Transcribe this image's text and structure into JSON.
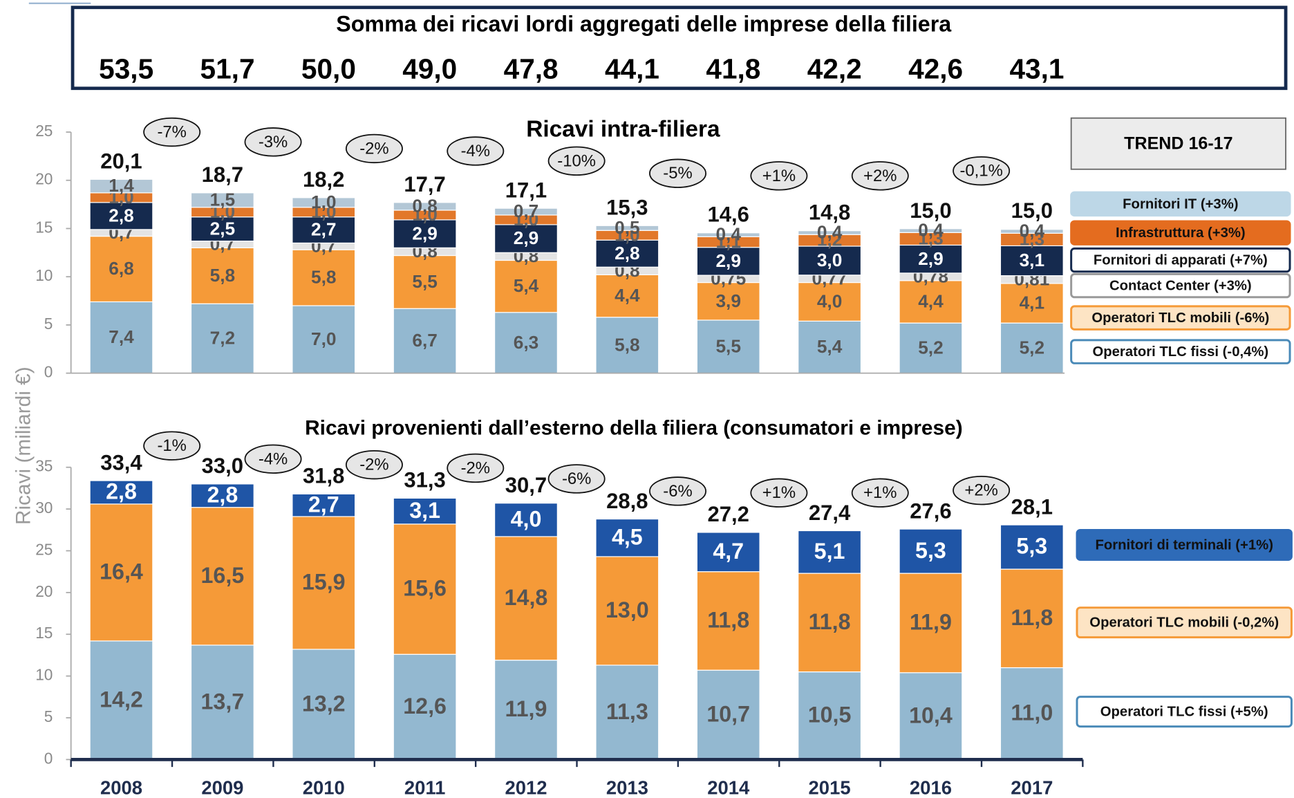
{
  "summary": {
    "title": "Somma dei ricavi lordi aggregati delle imprese della filiera",
    "values": [
      "53,5",
      "51,7",
      "50,0",
      "49,0",
      "47,8",
      "44,1",
      "41,8",
      "42,2",
      "42,6",
      "43,1"
    ]
  },
  "y_label": "Ricavi (miliardi €)",
  "chart_data": [
    {
      "type": "bar",
      "stacked": true,
      "title": "Ricavi intra-filiera",
      "legend_title": "TREND 16-17",
      "ylim": [
        0,
        25
      ],
      "yticks": [
        0,
        5,
        10,
        15,
        20,
        25
      ],
      "series": [
        {
          "name": "Operatori TLC fissi (-0,4%)",
          "color": "#93b8d0",
          "values": [
            7.4,
            7.2,
            7.0,
            6.7,
            6.3,
            5.8,
            5.5,
            5.4,
            5.2,
            5.2
          ],
          "value_labels": [
            "7,4",
            "7,2",
            "7,0",
            "6,7",
            "6,3",
            "5,8",
            "5,5",
            "5,4",
            "5,2",
            "5,2"
          ]
        },
        {
          "name": "Operatori TLC mobili (-6%)",
          "color": "#f59a38",
          "values": [
            6.8,
            5.8,
            5.8,
            5.5,
            5.4,
            4.4,
            3.9,
            4.0,
            4.4,
            4.1
          ],
          "value_labels": [
            "6,8",
            "5,8",
            "5,8",
            "5,5",
            "5,4",
            "4,4",
            "3,9",
            "4,0",
            "4,4",
            "4,1"
          ]
        },
        {
          "name": "Contact Center (+3%)",
          "color": "#e4e4e4",
          "values": [
            0.7,
            0.7,
            0.7,
            0.8,
            0.8,
            0.8,
            0.75,
            0.77,
            0.78,
            0.81
          ],
          "value_labels": [
            "0,7",
            "0,7",
            "0,7",
            "0,8",
            "0,8",
            "0,8",
            "0,75",
            "0,77",
            "0,78",
            "0,81"
          ]
        },
        {
          "name": "Fornitori di apparati (+7%)",
          "color": "#152a4e",
          "values": [
            2.8,
            2.5,
            2.7,
            2.9,
            2.9,
            2.8,
            2.9,
            3.0,
            2.9,
            3.1
          ],
          "value_labels": [
            "2,8",
            "2,5",
            "2,7",
            "2,9",
            "2,9",
            "2,8",
            "2,9",
            "3,0",
            "2,9",
            "3,1"
          ]
        },
        {
          "name": "Infrastruttura (+3%)",
          "color": "#e2782a",
          "values": [
            1.0,
            1.0,
            1.0,
            1.0,
            1.0,
            1.0,
            1.1,
            1.2,
            1.3,
            1.3
          ],
          "value_labels": [
            "1,0",
            "1,0",
            "1,0",
            "1,0",
            "1,0",
            "1,0",
            "1,1",
            "1,2",
            "1,3",
            "1,3"
          ]
        },
        {
          "name": "Fornitori IT (+3%)",
          "color": "#b3c7d6",
          "values": [
            1.4,
            1.5,
            1.0,
            0.8,
            0.7,
            0.5,
            0.4,
            0.4,
            0.4,
            0.4
          ],
          "value_labels": [
            "1,4",
            "1,5",
            "1,0",
            "0,8",
            "0,7",
            "0,5",
            "0,4",
            "0,4",
            "0,4",
            "0,4"
          ]
        }
      ],
      "totals": [
        20.1,
        18.7,
        18.2,
        17.7,
        17.1,
        15.3,
        14.6,
        14.8,
        15.0,
        15.0
      ],
      "total_labels": [
        "20,1",
        "18,7",
        "18,2",
        "17,7",
        "17,1",
        "15,3",
        "14,6",
        "14,8",
        "15,0",
        "15,0"
      ],
      "annotations": [
        "-7%",
        "-3%",
        "-2%",
        "-4%",
        "-10%",
        "-5%",
        "+1%",
        "+2%",
        "-0,1%"
      ]
    },
    {
      "type": "bar",
      "stacked": true,
      "title": "Ricavi provenienti dall’esterno della filiera (consumatori e imprese)",
      "categories": [
        "2008",
        "2009",
        "2010",
        "2011",
        "2012",
        "2013",
        "2014",
        "2015",
        "2016",
        "2017"
      ],
      "ylim": [
        0,
        35
      ],
      "yticks": [
        0,
        5,
        10,
        15,
        20,
        25,
        30,
        35
      ],
      "series": [
        {
          "name": "Operatori TLC fissi (+5%)",
          "color": "#93b8d0",
          "values": [
            14.2,
            13.7,
            13.2,
            12.6,
            11.9,
            11.3,
            10.7,
            10.5,
            10.4,
            11.0
          ],
          "value_labels": [
            "14,2",
            "13,7",
            "13,2",
            "12,6",
            "11,9",
            "11,3",
            "10,7",
            "10,5",
            "10,4",
            "11,0"
          ]
        },
        {
          "name": "Operatori TLC mobili (-0,2%)",
          "color": "#f59a38",
          "values": [
            16.4,
            16.5,
            15.9,
            15.6,
            14.8,
            13.0,
            11.8,
            11.8,
            11.9,
            11.8
          ],
          "value_labels": [
            "16,4",
            "16,5",
            "15,9",
            "15,6",
            "14,8",
            "13,0",
            "11,8",
            "11,8",
            "11,9",
            "11,8"
          ]
        },
        {
          "name": "Fornitori di terminali (+1%)",
          "color": "#1f55a6",
          "values": [
            2.8,
            2.8,
            2.7,
            3.1,
            4.0,
            4.5,
            4.7,
            5.1,
            5.3,
            5.3
          ],
          "value_labels": [
            "2,8",
            "2,8",
            "2,7",
            "3,1",
            "4,0",
            "4,5",
            "4,7",
            "5,1",
            "5,3",
            "5,3"
          ]
        }
      ],
      "totals": [
        33.4,
        33.0,
        31.8,
        31.3,
        30.7,
        28.8,
        27.2,
        27.4,
        27.6,
        28.1
      ],
      "total_labels": [
        "33,4",
        "33,0",
        "31,8",
        "31,3",
        "30,7",
        "28,8",
        "27,2",
        "27,4",
        "27,6",
        "28,1"
      ],
      "annotations": [
        "-1%",
        "-4%",
        "-2%",
        "-2%",
        "-6%",
        "-6%",
        "+1%",
        "+1%",
        "+2%"
      ]
    }
  ]
}
